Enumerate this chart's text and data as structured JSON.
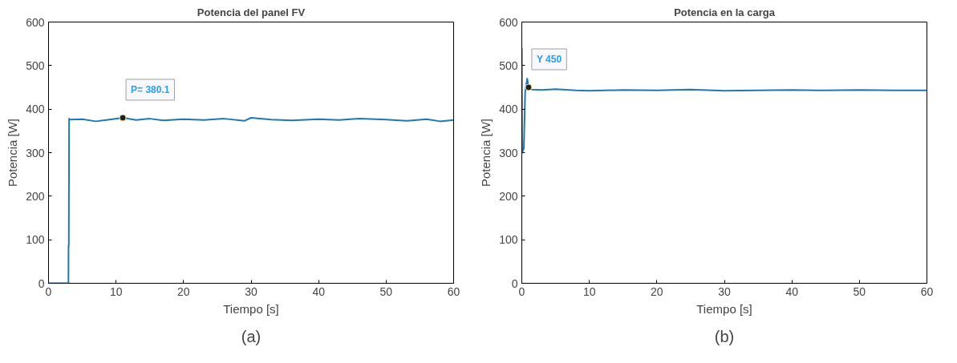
{
  "chart_data": [
    {
      "type": "line",
      "title": "Potencia del panel FV",
      "xlabel": "Tiempo [s]",
      "ylabel": "Potencia [W]",
      "x": [
        0,
        2.95,
        2.96,
        3.0,
        3.05,
        3.1,
        5,
        7,
        9,
        11,
        13,
        15,
        17,
        20,
        23,
        26,
        29,
        30,
        33,
        36,
        40,
        43,
        46,
        50,
        53,
        56,
        58,
        60
      ],
      "series": [
        {
          "color": "#1f77b4",
          "values": [
            0,
            0,
            85,
            85,
            378,
            376,
            377,
            372,
            376,
            380.1,
            375,
            378,
            374,
            377,
            375,
            378,
            373,
            380,
            376,
            374,
            377,
            375,
            378,
            376,
            373,
            377,
            372,
            375
          ]
        }
      ],
      "xlim": [
        0,
        60
      ],
      "xticks": [
        0,
        10,
        20,
        30,
        40,
        50,
        60
      ],
      "ylim": [
        0,
        600
      ],
      "yticks": [
        0,
        100,
        200,
        300,
        400,
        500,
        600
      ],
      "grid": false,
      "annotations": [
        {
          "text": "P= 380.1",
          "x": 11,
          "y": 380.1
        },
        "(a)"
      ]
    },
    {
      "type": "line",
      "title": "Potencia en la carga",
      "xlabel": "Tiempo [s]",
      "ylabel": "Potencia [W]",
      "x": [
        0,
        0.05,
        0.3,
        0.5,
        0.8,
        1.0,
        1.5,
        3,
        5,
        8,
        10,
        15,
        20,
        25,
        30,
        35,
        40,
        45,
        50,
        55,
        60
      ],
      "series": [
        {
          "color": "#1f77b4",
          "values": [
            540,
            300,
            310,
            440,
            470,
            450,
            445,
            444,
            446,
            443,
            442,
            444,
            443,
            445,
            442,
            443,
            444,
            443,
            444,
            443,
            443
          ]
        }
      ],
      "xlim": [
        0,
        60
      ],
      "xticks": [
        0,
        10,
        20,
        30,
        40,
        50,
        60
      ],
      "ylim": [
        0,
        600
      ],
      "yticks": [
        0,
        100,
        200,
        300,
        400,
        500,
        600
      ],
      "grid": false,
      "annotations": [
        {
          "text": "Y 450",
          "x": 1,
          "y": 450
        },
        "(b)"
      ]
    }
  ]
}
